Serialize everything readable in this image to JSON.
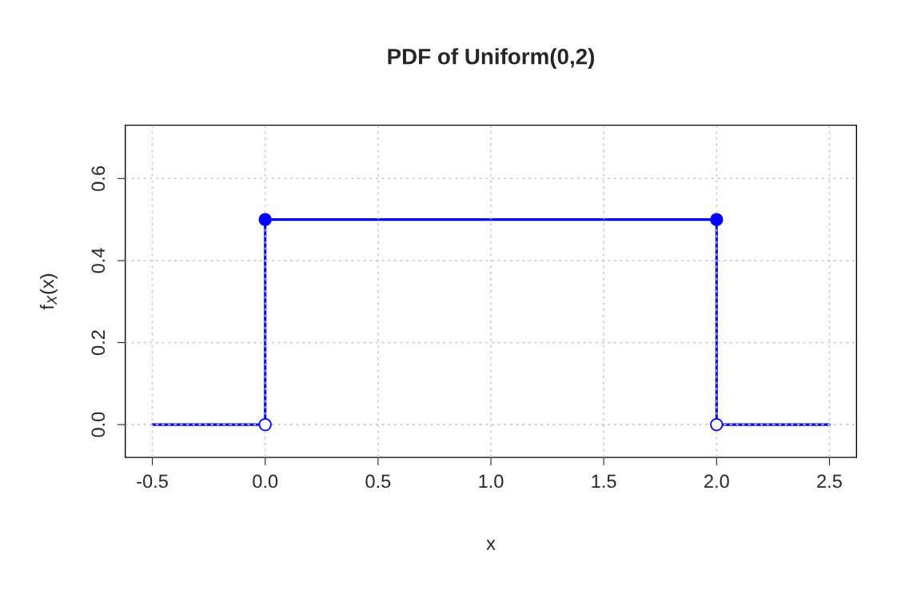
{
  "chart_data": {
    "type": "line",
    "title": "PDF of Uniform(0,2)",
    "xlabel": "x",
    "ylabel": "f$_{X}$(x)",
    "series": [
      {
        "type": "line",
        "color": "#0000ff",
        "x": [
          -0.5,
          0,
          0,
          2,
          2,
          2.5
        ],
        "values": [
          0,
          0,
          0.5,
          0.5,
          0,
          0
        ],
        "marker": "none"
      },
      {
        "type": "scatter",
        "color": "#0000ff",
        "x": [
          0,
          2
        ],
        "values": [
          0.5,
          0.5
        ],
        "marker": "circle"
      },
      {
        "type": "scatter",
        "color": "#0000ff",
        "x": [
          0,
          2
        ],
        "values": [
          0,
          0
        ],
        "marker": "circle"
      }
    ],
    "xlim": [
      -0.62,
      2.62
    ],
    "ylim": [
      -0.08,
      0.73
    ],
    "xticks": [
      {
        "value": -0.5,
        "label": "-0.5"
      },
      {
        "value": 0,
        "label": "0.0"
      },
      {
        "value": 0.5,
        "label": "0.5"
      },
      {
        "value": 1,
        "label": "1.0"
      },
      {
        "value": 1.5,
        "label": "1.5"
      },
      {
        "value": 2,
        "label": "2.0"
      },
      {
        "value": 2.5,
        "label": "2.5"
      }
    ],
    "yticks": [
      {
        "value": 0,
        "label": "0.0"
      },
      {
        "value": 0.2,
        "label": "0.2"
      },
      {
        "value": 0.4,
        "label": "0.4"
      },
      {
        "value": 0.6,
        "label": "0.6"
      }
    ],
    "grid": true,
    "legend": false
  }
}
